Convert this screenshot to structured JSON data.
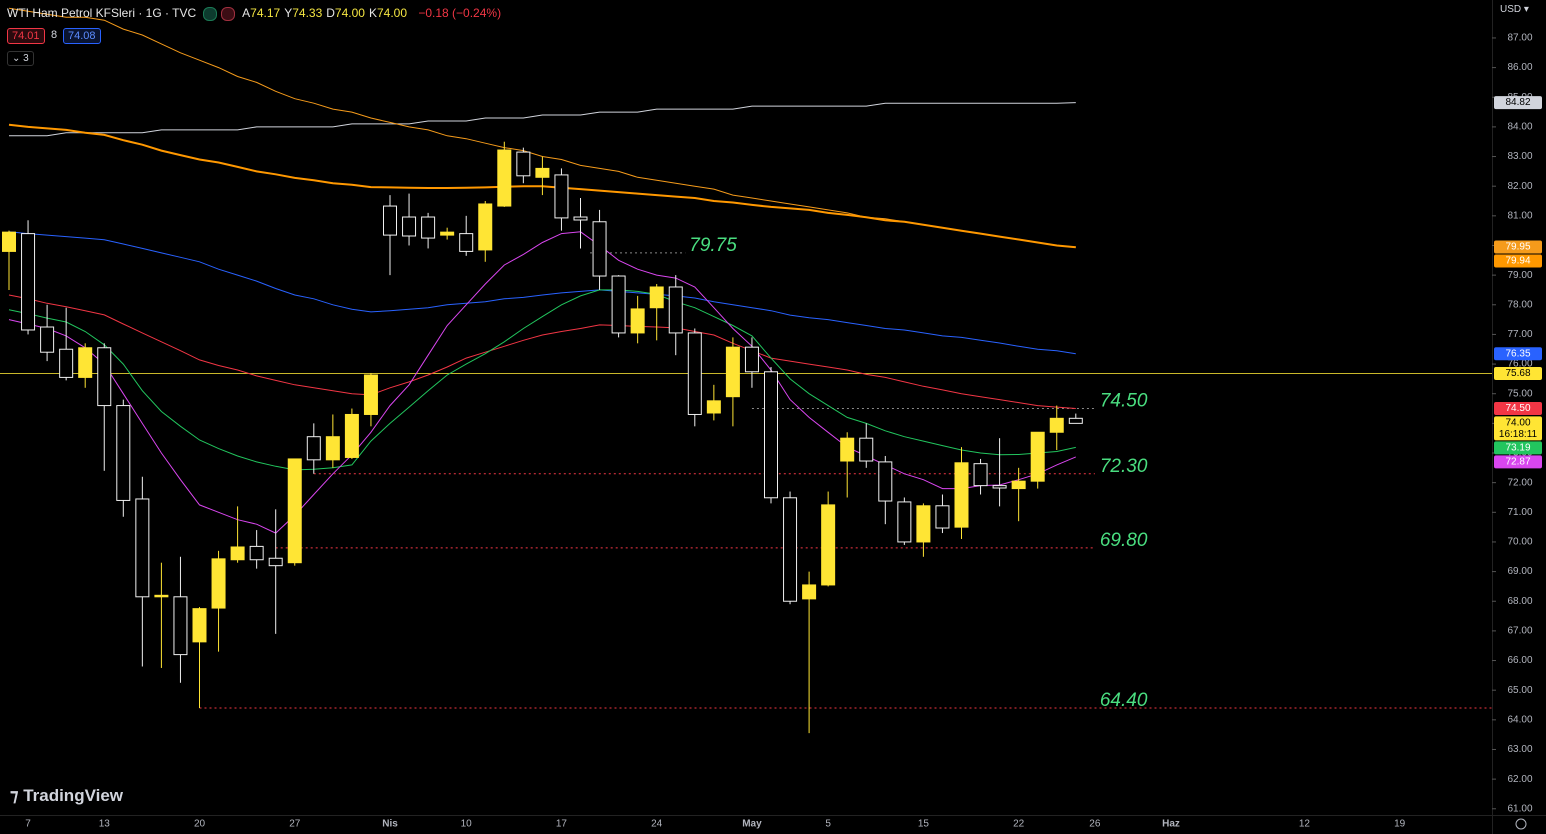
{
  "header": {
    "symbol": "WTI Ham Petrol KFSleri · 1G · TVC",
    "ohlc": [
      [
        "A",
        "74.17"
      ],
      [
        "Y",
        "74.33"
      ],
      [
        "D",
        "74.00"
      ],
      [
        "K",
        "74.00"
      ]
    ],
    "change": "−0.18 (−0.24%)",
    "bid": "74.01",
    "spread": "8",
    "ask": "74.08",
    "indicators": "3",
    "currency": "USD",
    "brand": "TradingView"
  },
  "chart_data": {
    "type": "candlestick",
    "categories": [
      null,
      "7",
      null,
      null,
      null,
      "13",
      null,
      null,
      null,
      null,
      "20",
      null,
      null,
      null,
      null,
      "27",
      null,
      null,
      null,
      null,
      "Nis",
      null,
      null,
      null,
      "10",
      null,
      null,
      null,
      null,
      "17",
      null,
      null,
      null,
      null,
      "24",
      null,
      null,
      null,
      null,
      "May",
      null,
      null,
      null,
      "5",
      null,
      null,
      null,
      null,
      "15",
      null,
      null,
      null,
      null,
      "22",
      null,
      null,
      null,
      "26",
      null,
      null,
      null,
      "Haz",
      null,
      null,
      null,
      null,
      null,
      null,
      "12",
      null,
      null,
      null,
      null,
      "19",
      null,
      null,
      null,
      null
    ],
    "open": [
      79.8,
      80.4,
      77.25,
      76.5,
      75.55,
      76.55,
      74.6,
      71.45,
      68.15,
      68.15,
      66.63,
      67.77,
      69.4,
      69.85,
      69.45,
      69.3,
      73.55,
      72.77,
      72.85,
      74.3,
      81.33,
      80.96,
      80.96,
      80.35,
      80.4,
      79.85,
      81.33,
      83.15,
      82.3,
      82.38,
      80.96,
      80.8,
      78.97,
      77.05,
      77.9,
      78.6,
      77.05,
      74.35,
      74.9,
      76.57,
      75.74,
      71.49,
      68.08,
      68.55,
      72.73,
      73.5,
      72.7,
      71.35,
      70.0,
      71.22,
      70.5,
      72.64,
      71.9,
      71.8,
      72.05,
      73.7,
      74.17,
      null,
      null,
      null,
      null,
      null,
      null,
      null,
      null,
      null,
      null,
      null,
      null,
      null,
      null,
      null,
      null,
      null,
      null,
      null,
      null,
      null
    ],
    "high": [
      80.5,
      80.85,
      78.0,
      77.9,
      76.7,
      76.7,
      74.8,
      72.2,
      69.3,
      69.5,
      67.8,
      69.7,
      71.2,
      70.4,
      71.1,
      72.8,
      74.0,
      74.3,
      74.5,
      75.7,
      81.7,
      81.75,
      81.1,
      80.6,
      81.0,
      81.5,
      83.5,
      83.3,
      83.0,
      82.6,
      81.6,
      81.2,
      79.0,
      78.3,
      78.7,
      79.0,
      77.2,
      75.3,
      76.9,
      76.9,
      75.9,
      71.7,
      69.0,
      71.7,
      73.7,
      74.0,
      72.9,
      71.5,
      71.3,
      71.6,
      73.2,
      72.8,
      73.5,
      72.5,
      73.7,
      74.6,
      74.33,
      null,
      null,
      null,
      null,
      null,
      null,
      null,
      null,
      null,
      null,
      null,
      null,
      null,
      null,
      null,
      null,
      null,
      null,
      null,
      null,
      null
    ],
    "low": [
      78.5,
      77.0,
      76.1,
      75.45,
      75.2,
      72.4,
      70.85,
      65.8,
      65.75,
      65.25,
      64.4,
      66.3,
      69.3,
      69.1,
      66.9,
      69.2,
      72.3,
      72.5,
      72.8,
      73.9,
      79.0,
      80.0,
      79.9,
      80.2,
      79.65,
      79.45,
      81.3,
      82.1,
      81.7,
      80.5,
      79.9,
      78.5,
      76.9,
      76.7,
      76.8,
      76.3,
      73.9,
      74.1,
      73.9,
      75.2,
      71.3,
      67.9,
      63.55,
      68.5,
      71.5,
      72.5,
      70.6,
      69.9,
      69.5,
      70.3,
      70.1,
      71.6,
      71.2,
      70.7,
      71.8,
      73.1,
      74.0,
      null,
      null,
      null,
      null,
      null,
      null,
      null,
      null,
      null,
      null,
      null,
      null,
      null,
      null,
      null,
      null,
      null,
      null,
      null,
      null,
      null
    ],
    "close": [
      80.45,
      77.15,
      76.4,
      75.55,
      76.55,
      74.6,
      71.4,
      68.15,
      68.2,
      66.2,
      67.75,
      69.43,
      69.83,
      69.4,
      69.2,
      72.8,
      72.77,
      73.55,
      74.3,
      75.63,
      80.35,
      80.32,
      80.25,
      80.45,
      79.8,
      81.4,
      83.22,
      82.35,
      82.6,
      80.93,
      80.86,
      78.97,
      77.05,
      77.86,
      78.6,
      77.05,
      74.3,
      74.76,
      76.57,
      75.74,
      71.49,
      68.0,
      68.55,
      71.25,
      73.5,
      72.73,
      71.38,
      70.0,
      71.22,
      70.47,
      72.67,
      71.9,
      71.82,
      72.05,
      73.7,
      74.17,
      74.0,
      null,
      null,
      null,
      null,
      null,
      null,
      null,
      null,
      null,
      null,
      null,
      null,
      null,
      null,
      null,
      null,
      null,
      null,
      null,
      null,
      null
    ],
    "up_color": "#ffe534",
    "down_color": "#000000",
    "down_border": "#f0f0f0",
    "price_label": "74.00",
    "countdown": "16:18:11",
    "series": [
      {
        "color": "#d1d4dc",
        "width": 1,
        "last_label": "84.82",
        "values": [
          83.7,
          83.7,
          83.7,
          83.8,
          83.8,
          83.8,
          83.8,
          83.8,
          83.9,
          83.9,
          83.9,
          83.9,
          83.9,
          84.0,
          84.0,
          84.0,
          84.0,
          84.0,
          84.1,
          84.1,
          84.1,
          84.1,
          84.2,
          84.2,
          84.2,
          84.3,
          84.3,
          84.3,
          84.4,
          84.4,
          84.4,
          84.5,
          84.5,
          84.5,
          84.6,
          84.6,
          84.6,
          84.6,
          84.6,
          84.7,
          84.7,
          84.7,
          84.7,
          84.7,
          84.7,
          84.7,
          84.8,
          84.8,
          84.8,
          84.8,
          84.8,
          84.8,
          84.8,
          84.8,
          84.8,
          84.8,
          84.82,
          null,
          null,
          null,
          null,
          null,
          null,
          null,
          null,
          null,
          null,
          null,
          null,
          null,
          null,
          null,
          null,
          null,
          null,
          null,
          null,
          null
        ]
      },
      {
        "color": "#f59b1b",
        "width": 1,
        "last_label": "79.95",
        "values": [
          88.0,
          87.9,
          87.8,
          87.7,
          87.7,
          87.6,
          87.3,
          87.1,
          86.8,
          86.5,
          86.25,
          86.0,
          85.7,
          85.5,
          85.2,
          84.95,
          84.8,
          84.6,
          84.5,
          84.3,
          84.15,
          84.0,
          83.9,
          83.7,
          83.6,
          83.45,
          83.3,
          83.2,
          83.0,
          82.9,
          82.7,
          82.6,
          82.5,
          82.3,
          82.2,
          82.1,
          82.0,
          81.9,
          81.7,
          81.6,
          81.5,
          81.4,
          81.3,
          81.2,
          81.1,
          80.95,
          80.9,
          80.8,
          80.7,
          80.6,
          80.5,
          80.4,
          80.3,
          80.2,
          80.1,
          80.0,
          79.95,
          null,
          null,
          null,
          null,
          null,
          null,
          null,
          null,
          null,
          null,
          null,
          null,
          null,
          null,
          null,
          null,
          null,
          null,
          null,
          null,
          null
        ]
      },
      {
        "color": "#ff9800",
        "width": 2,
        "last_label": "79.94",
        "values": [
          84.07,
          84.0,
          83.95,
          83.9,
          83.8,
          83.73,
          83.55,
          83.4,
          83.2,
          83.05,
          82.9,
          82.8,
          82.65,
          82.5,
          82.4,
          82.28,
          82.2,
          82.1,
          82.05,
          81.97,
          81.96,
          81.95,
          81.94,
          81.94,
          81.95,
          81.96,
          81.98,
          82.0,
          82.0,
          81.95,
          81.9,
          81.85,
          81.8,
          81.75,
          81.7,
          81.65,
          81.6,
          81.5,
          81.45,
          81.37,
          81.3,
          81.25,
          81.2,
          81.1,
          81.03,
          80.95,
          80.85,
          80.8,
          80.7,
          80.6,
          80.5,
          80.4,
          80.3,
          80.2,
          80.1,
          80.0,
          79.94,
          null,
          null,
          null,
          null,
          null,
          null,
          null,
          null,
          null,
          null,
          null,
          null,
          null,
          null,
          null,
          null,
          null,
          null,
          null,
          null,
          null
        ]
      },
      {
        "color": "#2962ff",
        "width": 1,
        "last_label": "76.35",
        "values": [
          80.46,
          80.4,
          80.35,
          80.3,
          80.25,
          80.19,
          80.05,
          79.9,
          79.75,
          79.6,
          79.45,
          79.2,
          79.0,
          78.8,
          78.55,
          78.33,
          78.2,
          78.0,
          77.85,
          77.76,
          77.8,
          77.85,
          77.9,
          78.0,
          78.05,
          78.1,
          78.2,
          78.25,
          78.33,
          78.4,
          78.45,
          78.5,
          78.45,
          78.4,
          78.35,
          78.3,
          78.23,
          78.1,
          78.0,
          77.9,
          77.8,
          77.65,
          77.56,
          77.5,
          77.4,
          77.3,
          77.2,
          77.15,
          77.05,
          76.95,
          76.9,
          76.8,
          76.71,
          76.6,
          76.5,
          76.45,
          76.35,
          null,
          null,
          null,
          null,
          null,
          null,
          null,
          null,
          null,
          null,
          null,
          null,
          null,
          null,
          null,
          null,
          null,
          null,
          null,
          null,
          null
        ]
      },
      {
        "color": "#f23645",
        "width": 1,
        "last_label": "74.50",
        "values": [
          78.33,
          78.2,
          78.05,
          77.93,
          77.8,
          77.66,
          77.35,
          77.05,
          76.75,
          76.45,
          76.14,
          75.95,
          75.8,
          75.6,
          75.45,
          75.3,
          75.2,
          75.1,
          75.0,
          74.96,
          75.2,
          75.4,
          75.63,
          75.9,
          76.2,
          76.4,
          76.6,
          76.8,
          76.98,
          77.1,
          77.2,
          77.32,
          77.3,
          77.27,
          77.25,
          77.22,
          77.1,
          76.98,
          76.7,
          76.45,
          76.2,
          76.1,
          76.0,
          75.9,
          75.8,
          75.65,
          75.55,
          75.4,
          75.25,
          75.13,
          75.0,
          74.9,
          74.8,
          74.7,
          74.6,
          74.55,
          74.5,
          null,
          null,
          null,
          null,
          null,
          null,
          null,
          null,
          null,
          null,
          null,
          null,
          null,
          null,
          null,
          null,
          null,
          null,
          null,
          null,
          null
        ]
      },
      {
        "color": "#22c55e",
        "width": 1,
        "last_label": "73.19",
        "values": [
          77.83,
          77.7,
          77.55,
          77.42,
          77.1,
          76.65,
          76.0,
          75.1,
          74.4,
          73.9,
          73.44,
          73.15,
          72.9,
          72.7,
          72.55,
          72.43,
          72.45,
          72.5,
          72.6,
          73.4,
          74.0,
          74.55,
          75.1,
          75.63,
          76.0,
          76.35,
          76.75,
          77.2,
          77.6,
          78.0,
          78.3,
          78.5,
          78.5,
          78.45,
          78.35,
          78.1,
          77.9,
          77.6,
          77.3,
          76.95,
          76.2,
          75.5,
          75.0,
          74.6,
          74.2,
          74.0,
          73.75,
          73.55,
          73.4,
          73.25,
          73.1,
          73.0,
          72.94,
          72.95,
          73.0,
          73.05,
          73.19,
          null,
          null,
          null,
          null,
          null,
          null,
          null,
          null,
          null,
          null,
          null,
          null,
          null,
          null,
          null,
          null,
          null,
          null,
          null,
          null,
          null
        ]
      },
      {
        "color": "#d946ef",
        "width": 1,
        "last_label": "72.87",
        "values": [
          77.5,
          77.35,
          77.2,
          76.95,
          76.55,
          76.0,
          75.0,
          74.0,
          73.0,
          72.1,
          71.25,
          71.0,
          70.75,
          70.6,
          70.3,
          70.9,
          71.6,
          72.3,
          72.94,
          73.7,
          74.6,
          75.3,
          76.3,
          77.3,
          78.0,
          78.7,
          79.34,
          79.7,
          80.1,
          80.4,
          80.46,
          80.0,
          79.5,
          79.2,
          79.0,
          78.9,
          78.6,
          77.9,
          77.2,
          76.6,
          75.8,
          74.8,
          74.2,
          73.7,
          73.2,
          72.9,
          72.6,
          72.3,
          72.1,
          71.8,
          71.8,
          71.9,
          71.92,
          72.1,
          72.3,
          72.6,
          72.87,
          null,
          null,
          null,
          null,
          null,
          null,
          null,
          null,
          null,
          null,
          null,
          null,
          null,
          null,
          null,
          null,
          null,
          null,
          null,
          null,
          null
        ]
      }
    ],
    "hline": {
      "value": 75.68,
      "color": "#c9b82a"
    },
    "levels": [
      {
        "value": 79.75,
        "color": "#888888"
      },
      {
        "value": 74.5,
        "label": "74.50",
        "color": "#888888"
      },
      {
        "value": 72.3,
        "label": "72.30",
        "color": "#f23645"
      },
      {
        "value": 69.8,
        "label": "69.80",
        "color": "#f23645"
      },
      {
        "value": 64.4,
        "label": "64.40",
        "color": "#f23645"
      }
    ],
    "level_text_color": "#4ade80",
    "ylim": [
      60.79,
      88.28
    ],
    "yticks": [
      {
        "value": 61,
        "label": "61.00"
      },
      {
        "value": 62,
        "label": "62.00"
      },
      {
        "value": 63,
        "label": "63.00"
      },
      {
        "value": 64,
        "label": "64.00"
      },
      {
        "value": 65,
        "label": "65.00"
      },
      {
        "value": 66,
        "label": "66.00"
      },
      {
        "value": 67,
        "label": "67.00"
      },
      {
        "value": 68,
        "label": "68.00"
      },
      {
        "value": 69,
        "label": "69.00"
      },
      {
        "value": 70,
        "label": "70.00"
      },
      {
        "value": 71,
        "label": "71.00"
      },
      {
        "value": 72,
        "label": "72.00"
      },
      {
        "value": 73,
        "label": "73.00"
      },
      {
        "value": 74,
        "label": "74.00"
      },
      {
        "value": 75,
        "label": "75.00"
      },
      {
        "value": 76,
        "label": "76.00"
      },
      {
        "value": 77,
        "label": "77.00"
      },
      {
        "value": 78,
        "label": "78.00"
      },
      {
        "value": 79,
        "label": "79.00"
      },
      {
        "value": 80,
        "label": "80.00"
      },
      {
        "value": 81,
        "label": "81.00"
      },
      {
        "value": 82,
        "label": "82.00"
      },
      {
        "value": 83,
        "label": "83.00"
      },
      {
        "value": 84,
        "label": "84.00"
      },
      {
        "value": 85,
        "label": "85.00"
      },
      {
        "value": 86,
        "label": "86.00"
      },
      {
        "value": 87,
        "label": "87.00"
      }
    ],
    "grid": false
  }
}
